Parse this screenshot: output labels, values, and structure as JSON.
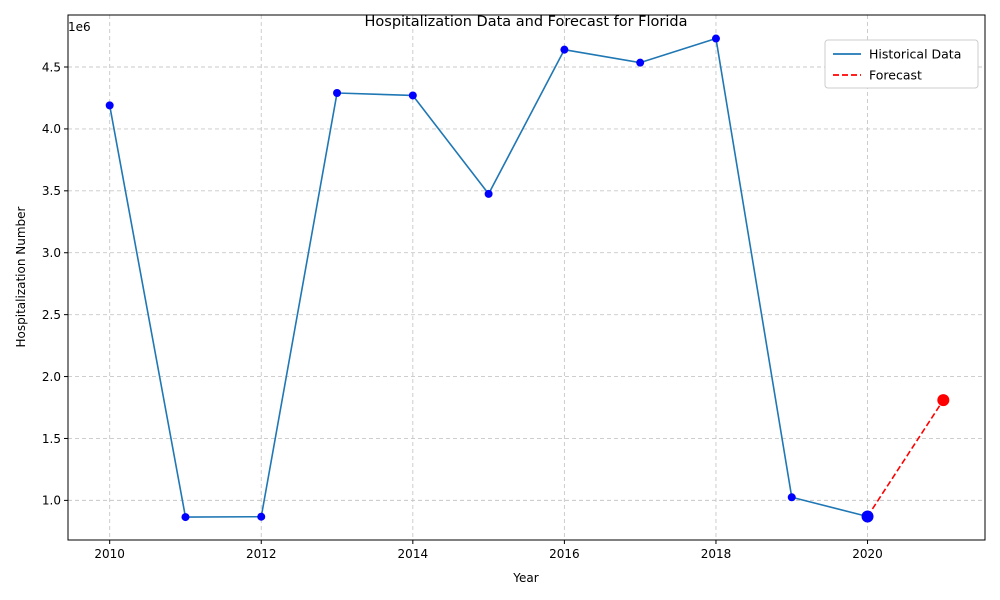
{
  "chart_data": {
    "type": "line",
    "title": "Hospitalization Data and Forecast for Florida",
    "xlabel": "Year",
    "ylabel": "Hospitalization Number",
    "y_offset_label": "1e6",
    "xlim": [
      2009.45,
      2021.55
    ],
    "ylim": [
      680000,
      4920000
    ],
    "x_ticks": [
      2010,
      2012,
      2014,
      2016,
      2018,
      2020
    ],
    "x_tick_labels": [
      "2010",
      "2012",
      "2014",
      "2016",
      "2018",
      "2020"
    ],
    "y_ticks": [
      1000000,
      1500000,
      2000000,
      2500000,
      3000000,
      3500000,
      4000000,
      4500000
    ],
    "y_tick_labels": [
      "1.0",
      "1.5",
      "2.0",
      "2.5",
      "3.0",
      "3.5",
      "4.0",
      "4.5"
    ],
    "grid": true,
    "legend_position": "top-right",
    "series": [
      {
        "name": "Historical Data",
        "color": "#1f77b4",
        "marker_color": "#0000ff",
        "style": "solid",
        "x": [
          2010,
          2011,
          2012,
          2013,
          2014,
          2015,
          2016,
          2017,
          2018,
          2019,
          2020
        ],
        "values": [
          4190000,
          865000,
          868000,
          4290000,
          4270000,
          3475000,
          4640000,
          4535000,
          4730000,
          1025000,
          870000
        ]
      },
      {
        "name": "Forecast",
        "color": "#ff0000",
        "marker_color": "#ff0000",
        "style": "dashed",
        "x": [
          2020,
          2021
        ],
        "values": [
          870000,
          1810000
        ]
      }
    ]
  }
}
